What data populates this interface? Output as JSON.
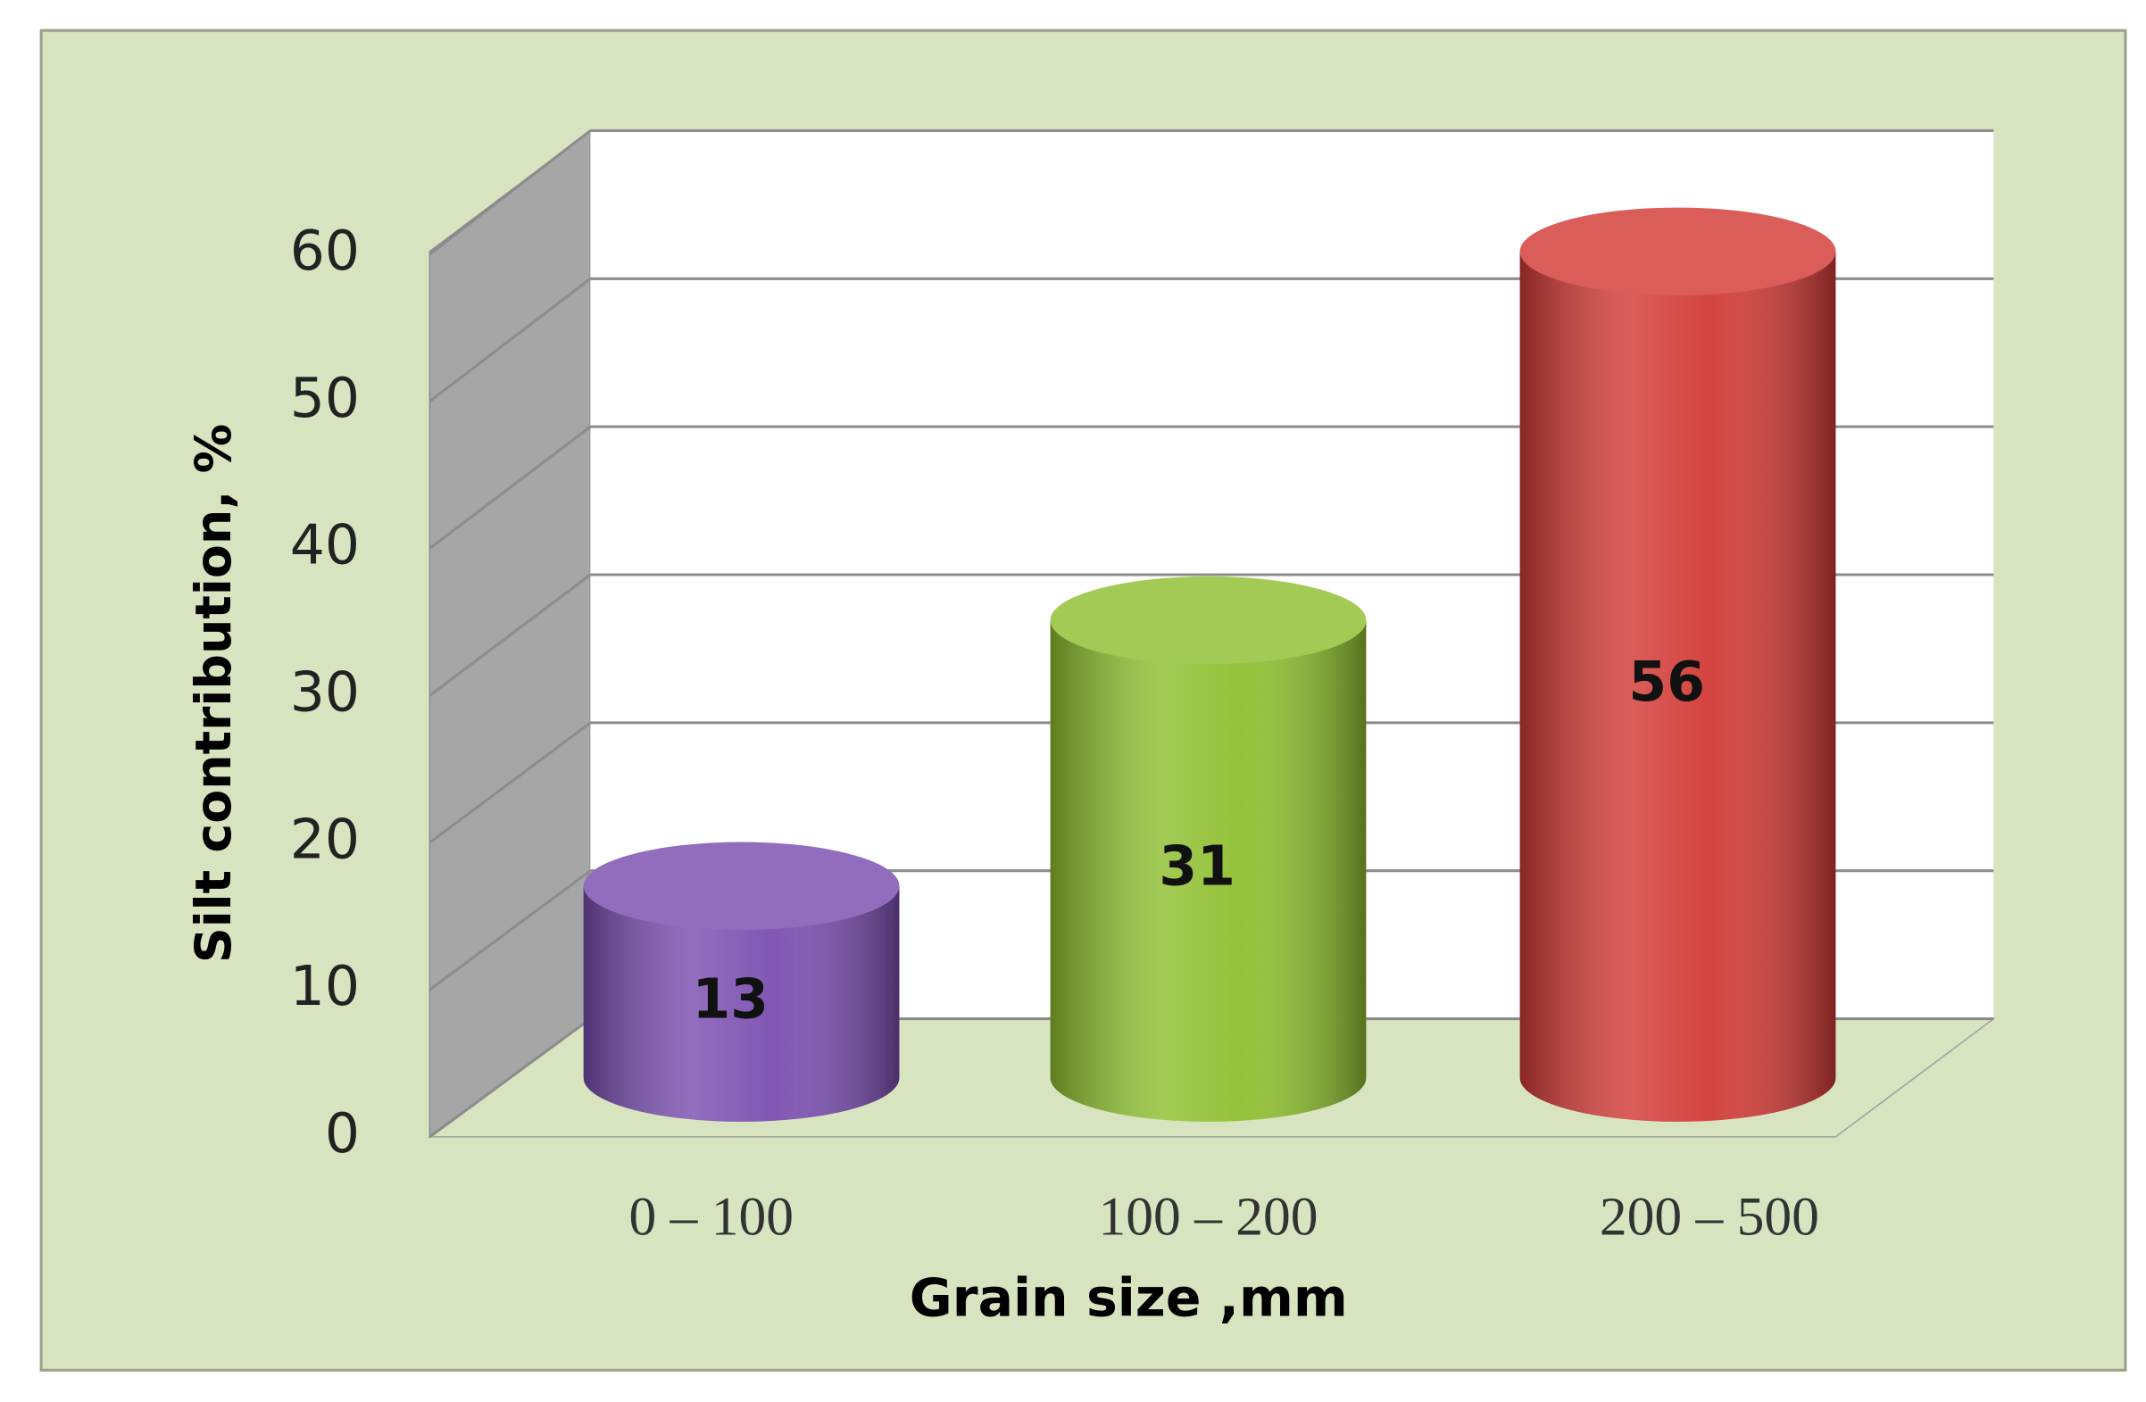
{
  "chart_data": {
    "type": "bar3d",
    "categories": [
      "0 – 100",
      "100 – 200",
      "200 – 500"
    ],
    "values": [
      13,
      31,
      56
    ],
    "colors": [
      "#7a4eb0",
      "#8fbf30",
      "#d23a36"
    ],
    "x_label": "Grain size ,mm",
    "y_label": "Silt contribution, %",
    "ylim": [
      0,
      60
    ],
    "yticks": [
      0,
      10,
      20,
      30,
      40,
      50,
      60
    ],
    "grid": true
  }
}
